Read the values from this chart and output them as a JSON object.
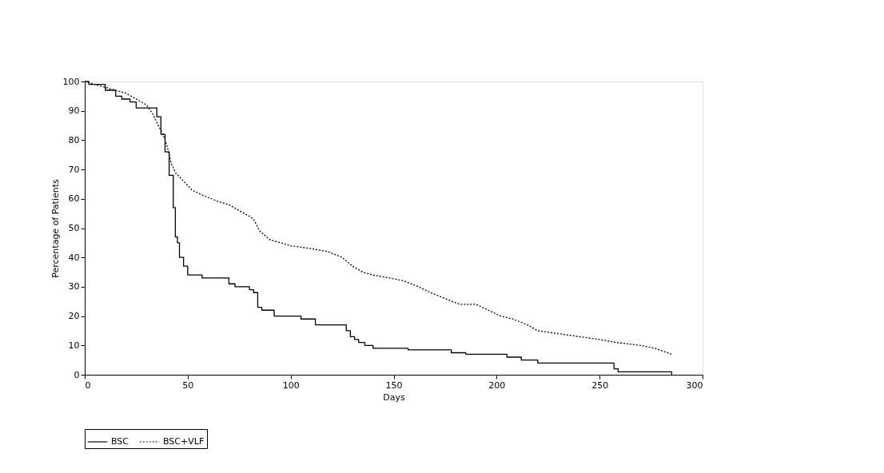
{
  "chart_data": {
    "type": "step",
    "xlabel": "Days",
    "ylabel": "Percentage of Patients",
    "xlim": [
      0,
      300
    ],
    "xticks": [
      0,
      50,
      100,
      150,
      200,
      250,
      300
    ],
    "ylim": [
      0,
      100
    ],
    "yticks": [
      0,
      10,
      20,
      30,
      40,
      50,
      60,
      70,
      80,
      90,
      100
    ],
    "grid": false,
    "legend": "bottom",
    "series": [
      {
        "name": "BSC",
        "color": "#000000",
        "line_style": "solid",
        "x": [
          0,
          2,
          8,
          10,
          13,
          15,
          18,
          22,
          25,
          33,
          35,
          37,
          39,
          41,
          43,
          44,
          45,
          46,
          48,
          50,
          55,
          57,
          68,
          70,
          73,
          78,
          80,
          82,
          84,
          86,
          90,
          92,
          103,
          105,
          110,
          112,
          125,
          127,
          129,
          131,
          133,
          136,
          140,
          155,
          157,
          175,
          178,
          182,
          185,
          203,
          205,
          210,
          212,
          218,
          220,
          255,
          257,
          259,
          283,
          285
        ],
        "values": [
          100,
          99,
          99,
          97,
          97,
          95,
          94,
          93,
          91,
          91,
          88,
          82,
          76,
          68,
          57,
          47,
          45,
          40,
          37,
          34,
          34,
          33,
          33,
          31,
          30,
          30,
          29,
          28,
          23,
          22,
          22,
          20,
          20,
          19,
          19,
          17,
          17,
          15,
          13,
          12,
          11,
          10,
          9,
          9,
          8.5,
          8.5,
          7.5,
          7.5,
          7,
          7,
          6,
          6,
          5,
          5,
          4,
          4,
          2,
          1,
          1,
          0
        ]
      },
      {
        "name": "BSC+VLF",
        "type": "line",
        "color": "#000000",
        "line_style": "dotted",
        "x": [
          0,
          5,
          10,
          15,
          20,
          25,
          30,
          33,
          35,
          38,
          40,
          42,
          44,
          48,
          52,
          58,
          65,
          70,
          75,
          80,
          82,
          85,
          90,
          95,
          100,
          110,
          118,
          125,
          130,
          135,
          140,
          148,
          155,
          162,
          168,
          175,
          182,
          190,
          196,
          202,
          208,
          215,
          220,
          230,
          240,
          250,
          258,
          270,
          277,
          281,
          285
        ],
        "values": [
          100,
          99,
          98,
          97,
          96,
          94,
          92,
          89,
          86,
          82,
          78,
          72,
          69,
          66,
          63,
          61,
          59,
          58,
          56,
          54,
          53,
          49,
          46,
          45,
          44,
          43,
          42,
          40,
          37,
          35,
          34,
          33,
          32,
          30,
          28,
          26,
          24,
          24,
          22,
          20,
          19,
          17,
          15,
          14,
          13,
          12,
          11,
          10,
          9,
          8,
          7
        ]
      }
    ]
  }
}
